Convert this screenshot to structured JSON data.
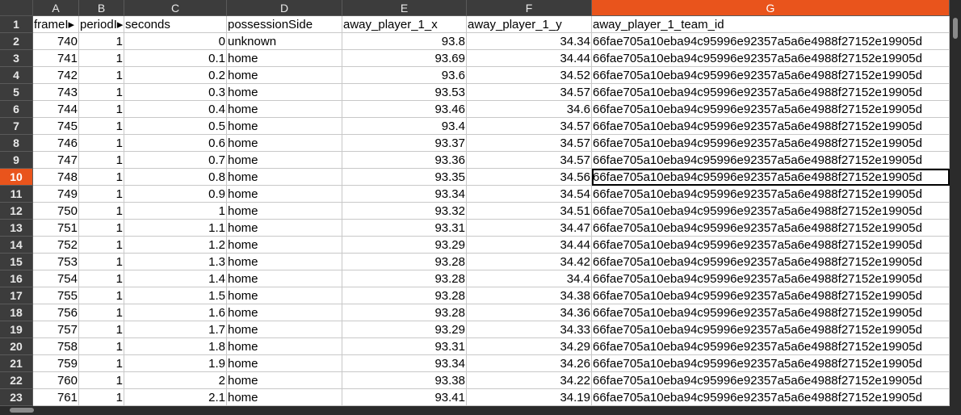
{
  "columns": [
    {
      "letter": "A",
      "width": 57
    },
    {
      "letter": "B",
      "width": 56
    },
    {
      "letter": "C",
      "width": 127
    },
    {
      "letter": "D",
      "width": 143
    },
    {
      "letter": "E",
      "width": 154
    },
    {
      "letter": "F",
      "width": 155
    },
    {
      "letter": "G",
      "width": 443
    }
  ],
  "active_column": "G",
  "active_row": "10",
  "selected_cell": {
    "row": 9,
    "col": 6
  },
  "rows": [
    [
      "frameI▸",
      "periodI▸",
      "seconds",
      "possessionSide",
      "away_player_1_x",
      "away_player_1_y",
      "away_player_1_team_id"
    ],
    [
      "740",
      "1",
      "0",
      "unknown",
      "93.8",
      "34.34",
      "66fae705a10eba94c95996e92357a5a6e4988f27152e19905d"
    ],
    [
      "741",
      "1",
      "0.1",
      "home",
      "93.69",
      "34.44",
      "66fae705a10eba94c95996e92357a5a6e4988f27152e19905d"
    ],
    [
      "742",
      "1",
      "0.2",
      "home",
      "93.6",
      "34.52",
      "66fae705a10eba94c95996e92357a5a6e4988f27152e19905d"
    ],
    [
      "743",
      "1",
      "0.3",
      "home",
      "93.53",
      "34.57",
      "66fae705a10eba94c95996e92357a5a6e4988f27152e19905d"
    ],
    [
      "744",
      "1",
      "0.4",
      "home",
      "93.46",
      "34.6",
      "66fae705a10eba94c95996e92357a5a6e4988f27152e19905d"
    ],
    [
      "745",
      "1",
      "0.5",
      "home",
      "93.4",
      "34.57",
      "66fae705a10eba94c95996e92357a5a6e4988f27152e19905d"
    ],
    [
      "746",
      "1",
      "0.6",
      "home",
      "93.37",
      "34.57",
      "66fae705a10eba94c95996e92357a5a6e4988f27152e19905d"
    ],
    [
      "747",
      "1",
      "0.7",
      "home",
      "93.36",
      "34.57",
      "66fae705a10eba94c95996e92357a5a6e4988f27152e19905d"
    ],
    [
      "748",
      "1",
      "0.8",
      "home",
      "93.35",
      "34.56",
      "66fae705a10eba94c95996e92357a5a6e4988f27152e19905d"
    ],
    [
      "749",
      "1",
      "0.9",
      "home",
      "93.34",
      "34.54",
      "66fae705a10eba94c95996e92357a5a6e4988f27152e19905d"
    ],
    [
      "750",
      "1",
      "1",
      "home",
      "93.32",
      "34.51",
      "66fae705a10eba94c95996e92357a5a6e4988f27152e19905d"
    ],
    [
      "751",
      "1",
      "1.1",
      "home",
      "93.31",
      "34.47",
      "66fae705a10eba94c95996e92357a5a6e4988f27152e19905d"
    ],
    [
      "752",
      "1",
      "1.2",
      "home",
      "93.29",
      "34.44",
      "66fae705a10eba94c95996e92357a5a6e4988f27152e19905d"
    ],
    [
      "753",
      "1",
      "1.3",
      "home",
      "93.28",
      "34.42",
      "66fae705a10eba94c95996e92357a5a6e4988f27152e19905d"
    ],
    [
      "754",
      "1",
      "1.4",
      "home",
      "93.28",
      "34.4",
      "66fae705a10eba94c95996e92357a5a6e4988f27152e19905d"
    ],
    [
      "755",
      "1",
      "1.5",
      "home",
      "93.28",
      "34.38",
      "66fae705a10eba94c95996e92357a5a6e4988f27152e19905d"
    ],
    [
      "756",
      "1",
      "1.6",
      "home",
      "93.28",
      "34.36",
      "66fae705a10eba94c95996e92357a5a6e4988f27152e19905d"
    ],
    [
      "757",
      "1",
      "1.7",
      "home",
      "93.29",
      "34.33",
      "66fae705a10eba94c95996e92357a5a6e4988f27152e19905d"
    ],
    [
      "758",
      "1",
      "1.8",
      "home",
      "93.31",
      "34.29",
      "66fae705a10eba94c95996e92357a5a6e4988f27152e19905d"
    ],
    [
      "759",
      "1",
      "1.9",
      "home",
      "93.34",
      "34.26",
      "66fae705a10eba94c95996e92357a5a6e4988f27152e19905d"
    ],
    [
      "760",
      "1",
      "2",
      "home",
      "93.38",
      "34.22",
      "66fae705a10eba94c95996e92357a5a6e4988f27152e19905d"
    ],
    [
      "761",
      "1",
      "2.1",
      "home",
      "93.41",
      "34.19",
      "66fae705a10eba94c95996e92357a5a6e4988f27152e19905d"
    ]
  ],
  "colors": {
    "accent": "#e9541c",
    "header_bg": "#3c3c3c",
    "grid_line": "#c8c8c8"
  }
}
